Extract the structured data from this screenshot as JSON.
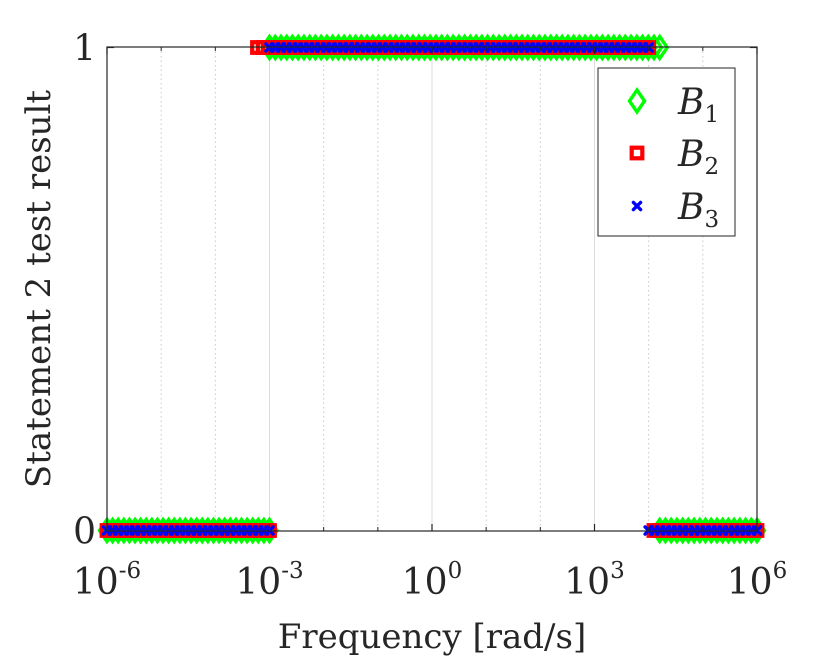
{
  "chart_data": {
    "type": "scatter",
    "title": "",
    "xlabel": "Frequency [rad/s]",
    "ylabel": "Statement 2 test result",
    "xscale": "log",
    "xlim": [
      1e-06,
      1000000.0
    ],
    "ylim": [
      0,
      1
    ],
    "grid": "x-minor dotted",
    "x_ticks": [
      {
        "base": "10",
        "exp": "-6",
        "value": 1e-06
      },
      {
        "base": "10",
        "exp": "-3",
        "value": 0.001
      },
      {
        "base": "10",
        "exp": "0",
        "value": 1
      },
      {
        "base": "10",
        "exp": "3",
        "value": 1000.0
      },
      {
        "base": "10",
        "exp": "6",
        "value": 1000000.0
      }
    ],
    "y_ticks": [
      {
        "label": "0",
        "value": 0
      },
      {
        "label": "1",
        "value": 1
      }
    ],
    "legend_position": "top-right",
    "series": [
      {
        "name": "B",
        "subscript": "1",
        "marker": "diamond",
        "color": "#00ff00",
        "segments": [
          {
            "x_from": 1e-06,
            "x_to": 0.001,
            "y": 0
          },
          {
            "x_from": 0.001,
            "x_to": 16000.0,
            "y": 1
          },
          {
            "x_from": 16000.0,
            "x_to": 1000000.0,
            "y": 0
          }
        ]
      },
      {
        "name": "B",
        "subscript": "2",
        "marker": "square",
        "color": "#ff0000",
        "segments": [
          {
            "x_from": 1e-06,
            "x_to": 0.001,
            "y": 0
          },
          {
            "x_from": 0.0006,
            "x_to": 10000.0,
            "y": 1
          },
          {
            "x_from": 12500.0,
            "x_to": 1000000.0,
            "y": 0
          }
        ]
      },
      {
        "name": "B",
        "subscript": "3",
        "marker": "x",
        "color": "#0000ff",
        "segments": [
          {
            "x_from": 1e-06,
            "x_to": 0.001,
            "y": 0
          },
          {
            "x_from": 0.001,
            "x_to": 10000.0,
            "y": 1
          },
          {
            "x_from": 10000.0,
            "x_to": 1000000.0,
            "y": 0
          }
        ]
      }
    ]
  }
}
